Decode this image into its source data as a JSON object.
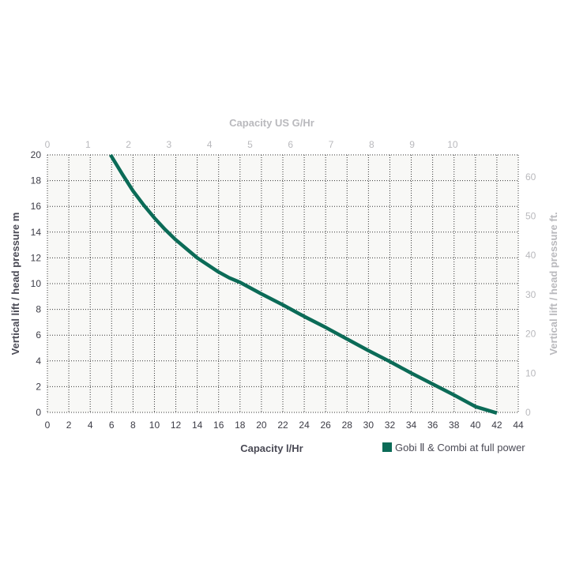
{
  "colors": {
    "line": "#0b6b57",
    "plot_background": "#f8f8f6",
    "grid": "#333333",
    "primary_text": "#3c3c46",
    "secondary_text": "#b9b9bd"
  },
  "chart_data": {
    "type": "line",
    "title": "",
    "xlabel": "Capacity l/Hr",
    "ylabel": "Vertical lift / head pressure m",
    "x2label": "Capacity US G/Hr",
    "y2label": "Vertical lift / head pressure ft.",
    "xlim": [
      0,
      44
    ],
    "ylim": [
      0,
      20
    ],
    "x2lim": [
      0,
      11.62
    ],
    "y2lim": [
      0,
      65.6
    ],
    "x_ticks": [
      0,
      2,
      4,
      6,
      8,
      10,
      12,
      14,
      16,
      18,
      20,
      22,
      24,
      26,
      28,
      30,
      32,
      34,
      36,
      38,
      40,
      42,
      44
    ],
    "y_ticks": [
      0,
      2,
      4,
      6,
      8,
      10,
      12,
      14,
      16,
      18,
      20
    ],
    "x2_ticks": [
      0,
      1,
      2,
      3,
      4,
      5,
      6,
      7,
      8,
      9,
      10
    ],
    "y2_ticks": [
      0,
      10,
      20,
      30,
      40,
      50,
      60
    ],
    "grid": true,
    "legend_position": "bottom-right",
    "series": [
      {
        "name": "Gobi Ⅱ & Combi at full power",
        "x": [
          5.9,
          7,
          8,
          9,
          10,
          11,
          12,
          13,
          14,
          15,
          16,
          17,
          18,
          20,
          22,
          24,
          26,
          28,
          30,
          32,
          34,
          36,
          38,
          40,
          42
        ],
        "y": [
          20,
          18.5,
          17.2,
          16.1,
          15.1,
          14.2,
          13.4,
          12.7,
          12.0,
          11.45,
          10.9,
          10.45,
          10.1,
          9.2,
          8.35,
          7.45,
          6.6,
          5.7,
          4.8,
          3.95,
          3.05,
          2.2,
          1.35,
          0.45,
          -0.05
        ]
      }
    ]
  }
}
